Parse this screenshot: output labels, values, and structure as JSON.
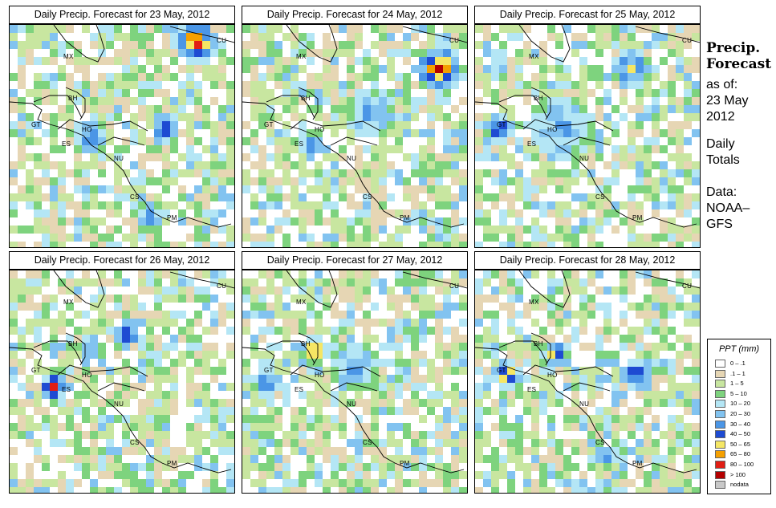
{
  "panels": [
    {
      "title": "Daily Precip. Forecast for  23 May, 2012",
      "seed": 23
    },
    {
      "title": "Daily Precip. Forecast for  24 May, 2012",
      "seed": 24
    },
    {
      "title": "Daily Precip. Forecast for  25 May, 2012",
      "seed": 25
    },
    {
      "title": "Daily Precip. Forecast for  26 May, 2012",
      "seed": 26
    },
    {
      "title": "Daily Precip. Forecast for  27 May, 2012",
      "seed": 27
    },
    {
      "title": "Daily Precip. Forecast for  28 May, 2012",
      "seed": 28
    }
  ],
  "map_labels": {
    "mx": "MX",
    "cu": "CU",
    "bh": "BH",
    "gt": "GT",
    "ho": "HO",
    "es": "ES",
    "nu": "NU",
    "cs": "CS",
    "pm": "PM"
  },
  "sidebar": {
    "title_line1": "Precip.",
    "title_line2": "Forecast",
    "asof_line1": "as of:",
    "asof_line2": "23 May",
    "asof_line3": "2012",
    "daily_line1": "Daily",
    "daily_line2": "Totals",
    "data_line1": "Data:",
    "data_line2": "NOAA–",
    "data_line3": "GFS"
  },
  "legend": {
    "title": "PPT (mm)",
    "items": [
      {
        "label": "0 – .1",
        "color": "#ffffff"
      },
      {
        "label": ".1 – 1",
        "color": "#e6d6b4"
      },
      {
        "label": "1 – 5",
        "color": "#c8e6a0"
      },
      {
        "label": "5 – 10",
        "color": "#7ed37e"
      },
      {
        "label": "10 – 20",
        "color": "#b4e6f5"
      },
      {
        "label": "20 – 30",
        "color": "#82c3f0"
      },
      {
        "label": "30 – 40",
        "color": "#4b96e6"
      },
      {
        "label": "40 – 50",
        "color": "#1e4bd2"
      },
      {
        "label": "50 – 65",
        "color": "#f5e664"
      },
      {
        "label": "65 – 80",
        "color": "#f5a000"
      },
      {
        "label": "80 – 100",
        "color": "#e11e14"
      },
      {
        "label": "> 100",
        "color": "#b40000"
      },
      {
        "label": "nodata",
        "color": "#c8c8c8"
      }
    ]
  }
}
